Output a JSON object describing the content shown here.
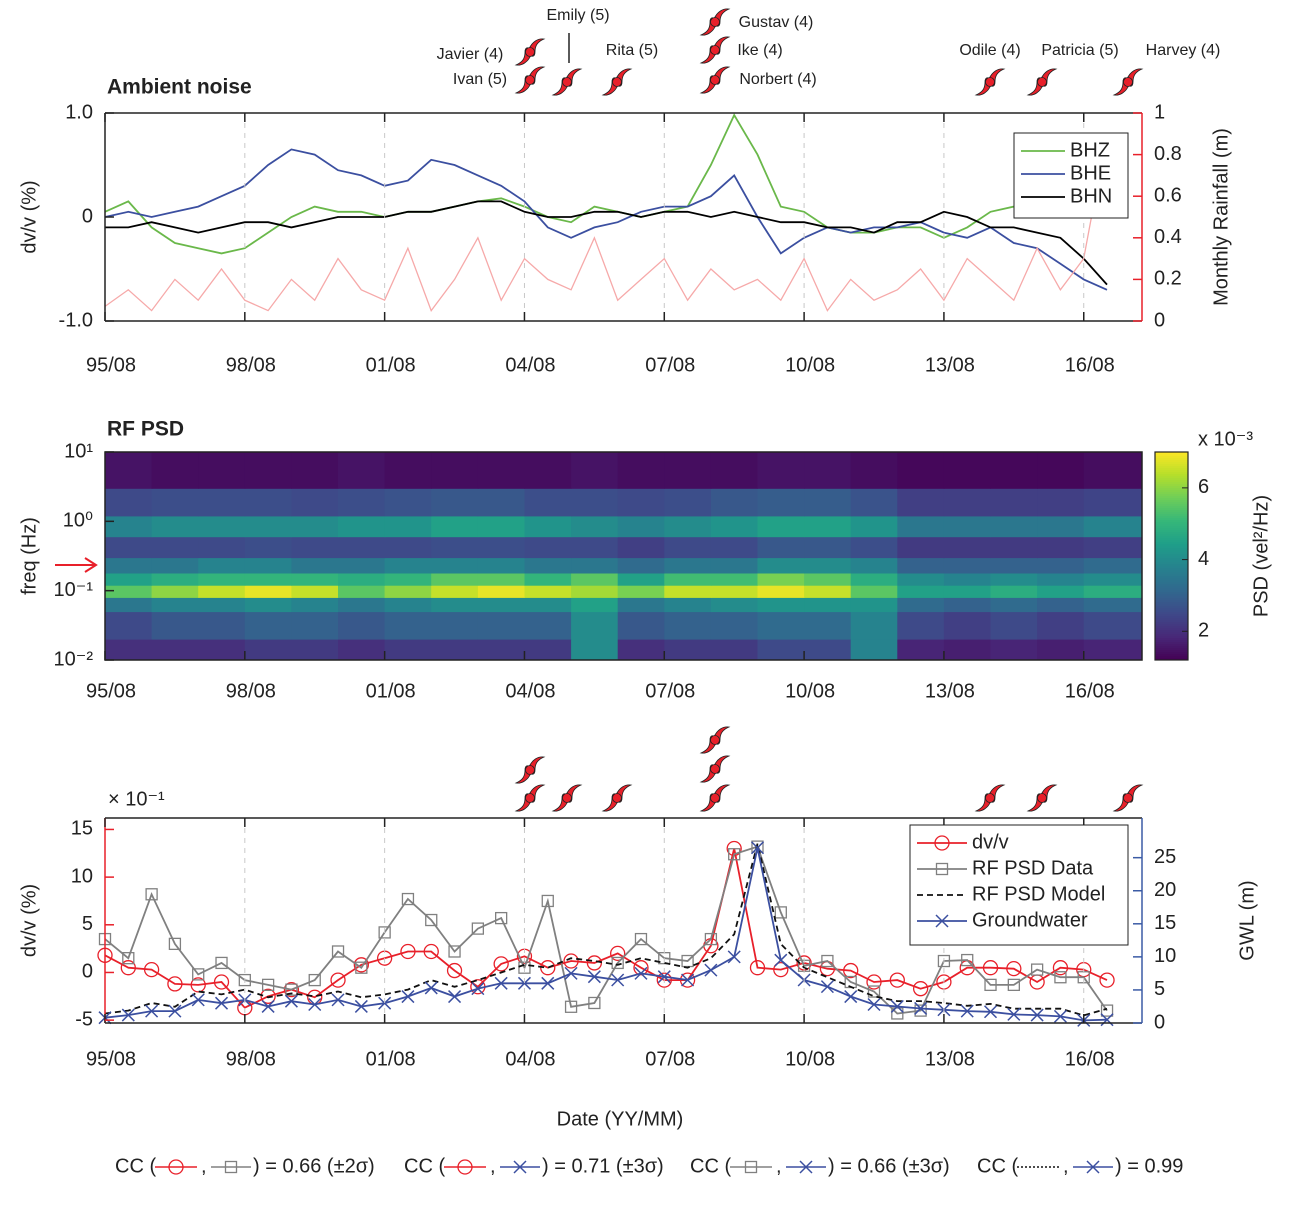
{
  "chart_data": [
    {
      "type": "line",
      "title": "Ambient noise",
      "ylabel": "dv/v (%)",
      "y2label": "Monthly Rainfall (m)",
      "x": [
        "95/08",
        "96/02",
        "96/08",
        "97/02",
        "97/08",
        "98/02",
        "98/08",
        "99/02",
        "99/08",
        "00/02",
        "00/08",
        "01/02",
        "01/08",
        "02/02",
        "02/08",
        "03/02",
        "03/08",
        "04/02",
        "04/08",
        "05/02",
        "05/08",
        "06/02",
        "06/08",
        "07/02",
        "07/08",
        "08/02",
        "08/08",
        "09/02",
        "09/08",
        "10/02",
        "10/08",
        "11/02",
        "11/08",
        "12/02",
        "12/08",
        "13/02",
        "13/08",
        "14/02",
        "14/08",
        "15/02",
        "15/08",
        "16/02",
        "16/08",
        "17/02"
      ],
      "xlim": [
        "95/08",
        "17/11"
      ],
      "xticks": [
        "95/08",
        "98/08",
        "01/08",
        "04/08",
        "07/08",
        "10/08",
        "13/08",
        "16/08"
      ],
      "ylim": [
        -1,
        1
      ],
      "yticks": [
        {
          "value": -1,
          "label": "-1.0"
        },
        0,
        {
          "value": 1,
          "label": "1.0"
        }
      ],
      "y2lim": [
        0,
        1
      ],
      "y2ticks": [
        0,
        0.2,
        0.4,
        0.6,
        0.8,
        1
      ],
      "y_color": "#222222",
      "y2_color": "#e8202a",
      "grid": "x",
      "legend": "upper right",
      "series": [
        {
          "name": "BHZ",
          "color": "#6ab84a",
          "values": [
            0.05,
            0.15,
            -0.1,
            -0.25,
            -0.3,
            -0.35,
            -0.3,
            -0.15,
            0.0,
            0.1,
            0.05,
            0.05,
            0.0,
            0.05,
            0.05,
            0.1,
            0.15,
            0.18,
            0.1,
            0.0,
            -0.05,
            0.1,
            0.05,
            0.0,
            0.05,
            0.1,
            0.5,
            0.98,
            0.6,
            0.1,
            0.05,
            -0.1,
            -0.15,
            -0.15,
            -0.1,
            -0.1,
            -0.2,
            -0.1,
            0.05,
            0.1,
            0.05,
            0.2,
            0.3,
            0.15
          ]
        },
        {
          "name": "BHE",
          "color": "#3b4fa0",
          "values": [
            0.0,
            0.05,
            0.0,
            0.05,
            0.1,
            0.2,
            0.3,
            0.5,
            0.65,
            0.6,
            0.45,
            0.4,
            0.3,
            0.35,
            0.55,
            0.5,
            0.4,
            0.3,
            0.15,
            -0.1,
            -0.2,
            -0.1,
            -0.05,
            0.05,
            0.1,
            0.1,
            0.2,
            0.4,
            0.0,
            -0.35,
            -0.2,
            -0.1,
            -0.15,
            -0.1,
            -0.1,
            -0.05,
            -0.15,
            -0.2,
            -0.1,
            -0.25,
            -0.3,
            -0.45,
            -0.6,
            -0.7
          ]
        },
        {
          "name": "BHN",
          "color": "#000000",
          "values": [
            -0.1,
            -0.1,
            -0.05,
            -0.1,
            -0.15,
            -0.1,
            -0.05,
            -0.05,
            -0.1,
            -0.05,
            0.0,
            0.0,
            0.0,
            0.05,
            0.05,
            0.1,
            0.15,
            0.15,
            0.05,
            0.0,
            0.0,
            0.05,
            0.05,
            0.0,
            0.05,
            0.05,
            0.0,
            0.05,
            0.0,
            -0.05,
            -0.05,
            -0.1,
            -0.1,
            -0.15,
            -0.05,
            -0.05,
            0.05,
            0.0,
            -0.1,
            -0.1,
            -0.15,
            -0.2,
            -0.4,
            -0.65
          ]
        },
        {
          "color": "#f6a9a9",
          "axis": "y2",
          "values": [
            0.07,
            0.15,
            0.05,
            0.2,
            0.1,
            0.25,
            0.1,
            0.05,
            0.2,
            0.1,
            0.3,
            0.15,
            0.1,
            0.35,
            0.05,
            0.2,
            0.4,
            0.1,
            0.3,
            0.2,
            0.15,
            0.4,
            0.1,
            0.2,
            0.3,
            0.1,
            0.25,
            0.15,
            0.2,
            0.1,
            0.3,
            0.05,
            0.2,
            0.1,
            0.15,
            0.25,
            0.1,
            0.3,
            0.2,
            0.1,
            0.35,
            0.15,
            0.3,
            0.9
          ]
        }
      ],
      "annotations": [
        "Javier (4)",
        "Ivan (5)",
        "Emily (5)",
        "Rita (5)",
        "Gustav (4)",
        "Ike (4)",
        "Norbert (4)",
        "Odile (4)",
        "Patricia (5)",
        "Harvey (4)"
      ]
    },
    {
      "type": "heatmap",
      "title": "RF PSD",
      "ylabel": "freq (Hz)",
      "log_y": true,
      "xlim": [
        "95/08",
        "17/11"
      ],
      "xticks": [
        "95/08",
        "98/08",
        "01/08",
        "04/08",
        "07/08",
        "10/08",
        "13/08",
        "16/08"
      ],
      "ylim": [
        0.01,
        10
      ],
      "yticks": [
        {
          "value": 0.01,
          "label": "10⁻²"
        },
        {
          "value": 0.1,
          "label": "10⁻¹"
        },
        {
          "value": 1,
          "label": "10⁰"
        },
        {
          "value": 10,
          "label": "10¹"
        }
      ],
      "xbins": [
        "95/08",
        "96/08",
        "97/08",
        "98/08",
        "99/08",
        "00/08",
        "01/08",
        "02/08",
        "03/08",
        "04/08",
        "05/08",
        "06/08",
        "07/08",
        "08/08",
        "09/08",
        "10/08",
        "11/08",
        "12/08",
        "13/08",
        "14/08",
        "15/08",
        "16/08",
        "17/11"
      ],
      "ybins": [
        0.01,
        0.02,
        0.05,
        0.08,
        0.12,
        0.18,
        0.3,
        0.6,
        1.2,
        3,
        10
      ],
      "z": [
        [
          2,
          2,
          2,
          2.2,
          2.2,
          2,
          2.2,
          2.2,
          2.2,
          2.2,
          4,
          2,
          2.2,
          2.2,
          2.5,
          2.5,
          3.8,
          1.8,
          1.7,
          1.8,
          1.7,
          1.8
        ],
        [
          2.5,
          2.8,
          2.8,
          3,
          3,
          2.8,
          3,
          3,
          3,
          3,
          4,
          2.8,
          3,
          3,
          3.2,
          3.2,
          3.8,
          2.5,
          2.3,
          2.5,
          2.3,
          2.5
        ],
        [
          3.5,
          3.8,
          3.8,
          4,
          3.8,
          3.5,
          3.8,
          4,
          4,
          4,
          4.5,
          3.5,
          3.8,
          4,
          4.2,
          4.2,
          4.2,
          3.2,
          3,
          3.2,
          3,
          3.2
        ],
        [
          5.5,
          6,
          6.5,
          6.8,
          6.5,
          5.5,
          6,
          6.5,
          6.8,
          6.5,
          6.2,
          5.8,
          6.5,
          6.5,
          6.8,
          6.5,
          5.5,
          4.5,
          4.5,
          4.8,
          4.5,
          4.8
        ],
        [
          4.5,
          4.8,
          5,
          5,
          5,
          4.8,
          5,
          5.5,
          5.5,
          5,
          5.5,
          4.5,
          5.2,
          5.2,
          5.8,
          5.5,
          4.8,
          4,
          3.8,
          4,
          3.8,
          4
        ],
        [
          3.5,
          3.5,
          3.8,
          3.8,
          3.5,
          3.5,
          3.8,
          3.8,
          3.8,
          3.5,
          3.5,
          3.2,
          3.5,
          3.5,
          4,
          4,
          3.8,
          3,
          3,
          3,
          3,
          3.2
        ],
        [
          2.5,
          2.5,
          2.5,
          2.6,
          2.5,
          2.5,
          2.5,
          2.6,
          2.6,
          2.5,
          2.5,
          2.3,
          2.5,
          2.5,
          2.8,
          2.8,
          2.6,
          2.2,
          2.2,
          2.2,
          2.2,
          2.3
        ],
        [
          3.8,
          4,
          4,
          4,
          4,
          4.2,
          4.2,
          4.5,
          4.5,
          4.2,
          4,
          3.8,
          4,
          4.2,
          4.5,
          4.5,
          4.2,
          3.5,
          3.5,
          3.5,
          3.5,
          3.8
        ],
        [
          2.5,
          2.6,
          2.6,
          2.6,
          2.5,
          2.6,
          2.7,
          2.8,
          2.8,
          2.6,
          2.6,
          2.5,
          2.6,
          2.8,
          2.9,
          2.9,
          2.7,
          2.3,
          2.3,
          2.3,
          2.3,
          2.4
        ],
        [
          1.5,
          1.4,
          1.4,
          1.4,
          1.4,
          1.5,
          1.4,
          1.4,
          1.4,
          1.4,
          1.5,
          1.4,
          1.4,
          1.4,
          1.5,
          1.5,
          1.4,
          1.3,
          1.3,
          1.3,
          1.3,
          1.4
        ]
      ],
      "colorbar": {
        "label": "PSD (vel²/Hz)",
        "multiplier": "x 10⁻³",
        "clim": [
          1.2,
          7
        ],
        "ticks": [
          2,
          4,
          6
        ],
        "colormap": "viridis"
      }
    },
    {
      "type": "line",
      "xlabel": "Date (YY/MM)",
      "ylabel": "dv/v (%)",
      "y2label": "GWL (m)",
      "multiplier": "× 10⁻¹",
      "x": [
        "95/08",
        "96/02",
        "96/08",
        "97/02",
        "97/08",
        "98/02",
        "98/08",
        "99/02",
        "99/08",
        "00/02",
        "00/08",
        "01/02",
        "01/08",
        "02/02",
        "02/08",
        "03/02",
        "03/08",
        "04/02",
        "04/08",
        "05/02",
        "05/08",
        "06/02",
        "06/08",
        "07/02",
        "07/08",
        "08/02",
        "08/08",
        "09/02",
        "09/08",
        "10/02",
        "10/08",
        "11/02",
        "11/08",
        "12/02",
        "12/08",
        "13/02",
        "13/08",
        "14/02",
        "14/08",
        "15/02",
        "15/08",
        "16/02",
        "16/08",
        "17/02"
      ],
      "xlim": [
        "95/08",
        "17/11"
      ],
      "xticks": [
        "95/08",
        "98/08",
        "01/08",
        "04/08",
        "07/08",
        "10/08",
        "13/08",
        "16/08"
      ],
      "ylim": [
        -5.3,
        16.2
      ],
      "yticks": [
        -5,
        0,
        5,
        10,
        15
      ],
      "y2lim": [
        0,
        31
      ],
      "y2ticks": [
        0,
        5,
        10,
        15,
        20,
        25
      ],
      "y_color": "#e8202a",
      "y2_color": "#3b5ba5",
      "grid": "x",
      "legend": "upper right",
      "series": [
        {
          "name": "dv/v",
          "color": "#e8202a",
          "marker": "circle",
          "values": [
            1.8,
            0.5,
            0.3,
            -1.2,
            -1.3,
            -1.0,
            -3.7,
            -2.5,
            -1.8,
            -2.6,
            -0.8,
            0.8,
            1.5,
            2.2,
            2.2,
            0.2,
            -1.5,
            0.9,
            1.7,
            0.5,
            1.2,
            1.0,
            2.0,
            0.5,
            -0.8,
            -0.8,
            2.8,
            13.0,
            0.5,
            0.3,
            1.0,
            0.4,
            0.2,
            -1.0,
            -0.8,
            -1.7,
            -1.0,
            0.5,
            0.5,
            0.4,
            -1.0,
            0.5,
            0.3,
            -0.8
          ]
        },
        {
          "name": "RF PSD Data",
          "color": "#808080",
          "marker": "square",
          "values": [
            3.5,
            1.5,
            8.2,
            3.0,
            -0.2,
            1.0,
            -0.8,
            -1.3,
            -1.8,
            -0.8,
            2.2,
            0.5,
            4.2,
            7.7,
            5.5,
            2.2,
            4.6,
            5.7,
            0.5,
            7.5,
            -3.6,
            -3.2,
            1.0,
            3.5,
            1.5,
            1.2,
            3.5,
            12.4,
            13.2,
            6.3,
            0.7,
            1.2,
            -1.0,
            -2.0,
            -4.3,
            -4.0,
            1.2,
            1.3,
            -1.3,
            -1.3,
            0.3,
            -0.5,
            -0.5,
            -4.0
          ]
        },
        {
          "name": "RF PSD Model",
          "color": "#111111",
          "dash": true,
          "values": [
            -4.3,
            -4.0,
            -3.2,
            -3.6,
            -2.0,
            -2.3,
            -1.8,
            -2.6,
            -2.2,
            -2.5,
            -2.0,
            -2.6,
            -2.3,
            -1.8,
            -0.8,
            -1.5,
            -0.8,
            0.0,
            0.8,
            0.5,
            1.5,
            1.2,
            0.8,
            1.5,
            1.0,
            0.5,
            1.5,
            4.0,
            13.5,
            3.0,
            0.5,
            -0.5,
            -1.5,
            -2.5,
            -3.0,
            -3.0,
            -3.2,
            -3.5,
            -3.3,
            -3.8,
            -3.8,
            -3.8,
            -4.5,
            -3.8
          ]
        },
        {
          "name": "Groundwater",
          "color": "#3b4fa0",
          "marker": "x",
          "axis": "y2",
          "values": [
            0.8,
            1.2,
            1.8,
            1.8,
            3.5,
            3.0,
            3.5,
            2.5,
            3.3,
            2.8,
            3.5,
            2.5,
            3.0,
            4.0,
            5.3,
            4.0,
            5.2,
            6.0,
            6.0,
            6.0,
            7.5,
            7.0,
            6.5,
            7.5,
            7.0,
            6.5,
            8.0,
            10.0,
            26.5,
            9.5,
            6.5,
            5.5,
            4.0,
            2.8,
            2.5,
            2.2,
            2.0,
            1.8,
            1.7,
            1.3,
            1.2,
            1.0,
            0.4,
            0.5
          ]
        }
      ],
      "correlations": {
        "prefix": "CC (",
        "separator": ",",
        "values": [
          ") = 0.66 (±2σ)",
          ") = 0.71 (±3σ)",
          ") = 0.66 (±3σ)",
          ") = 0.99"
        ]
      }
    }
  ]
}
